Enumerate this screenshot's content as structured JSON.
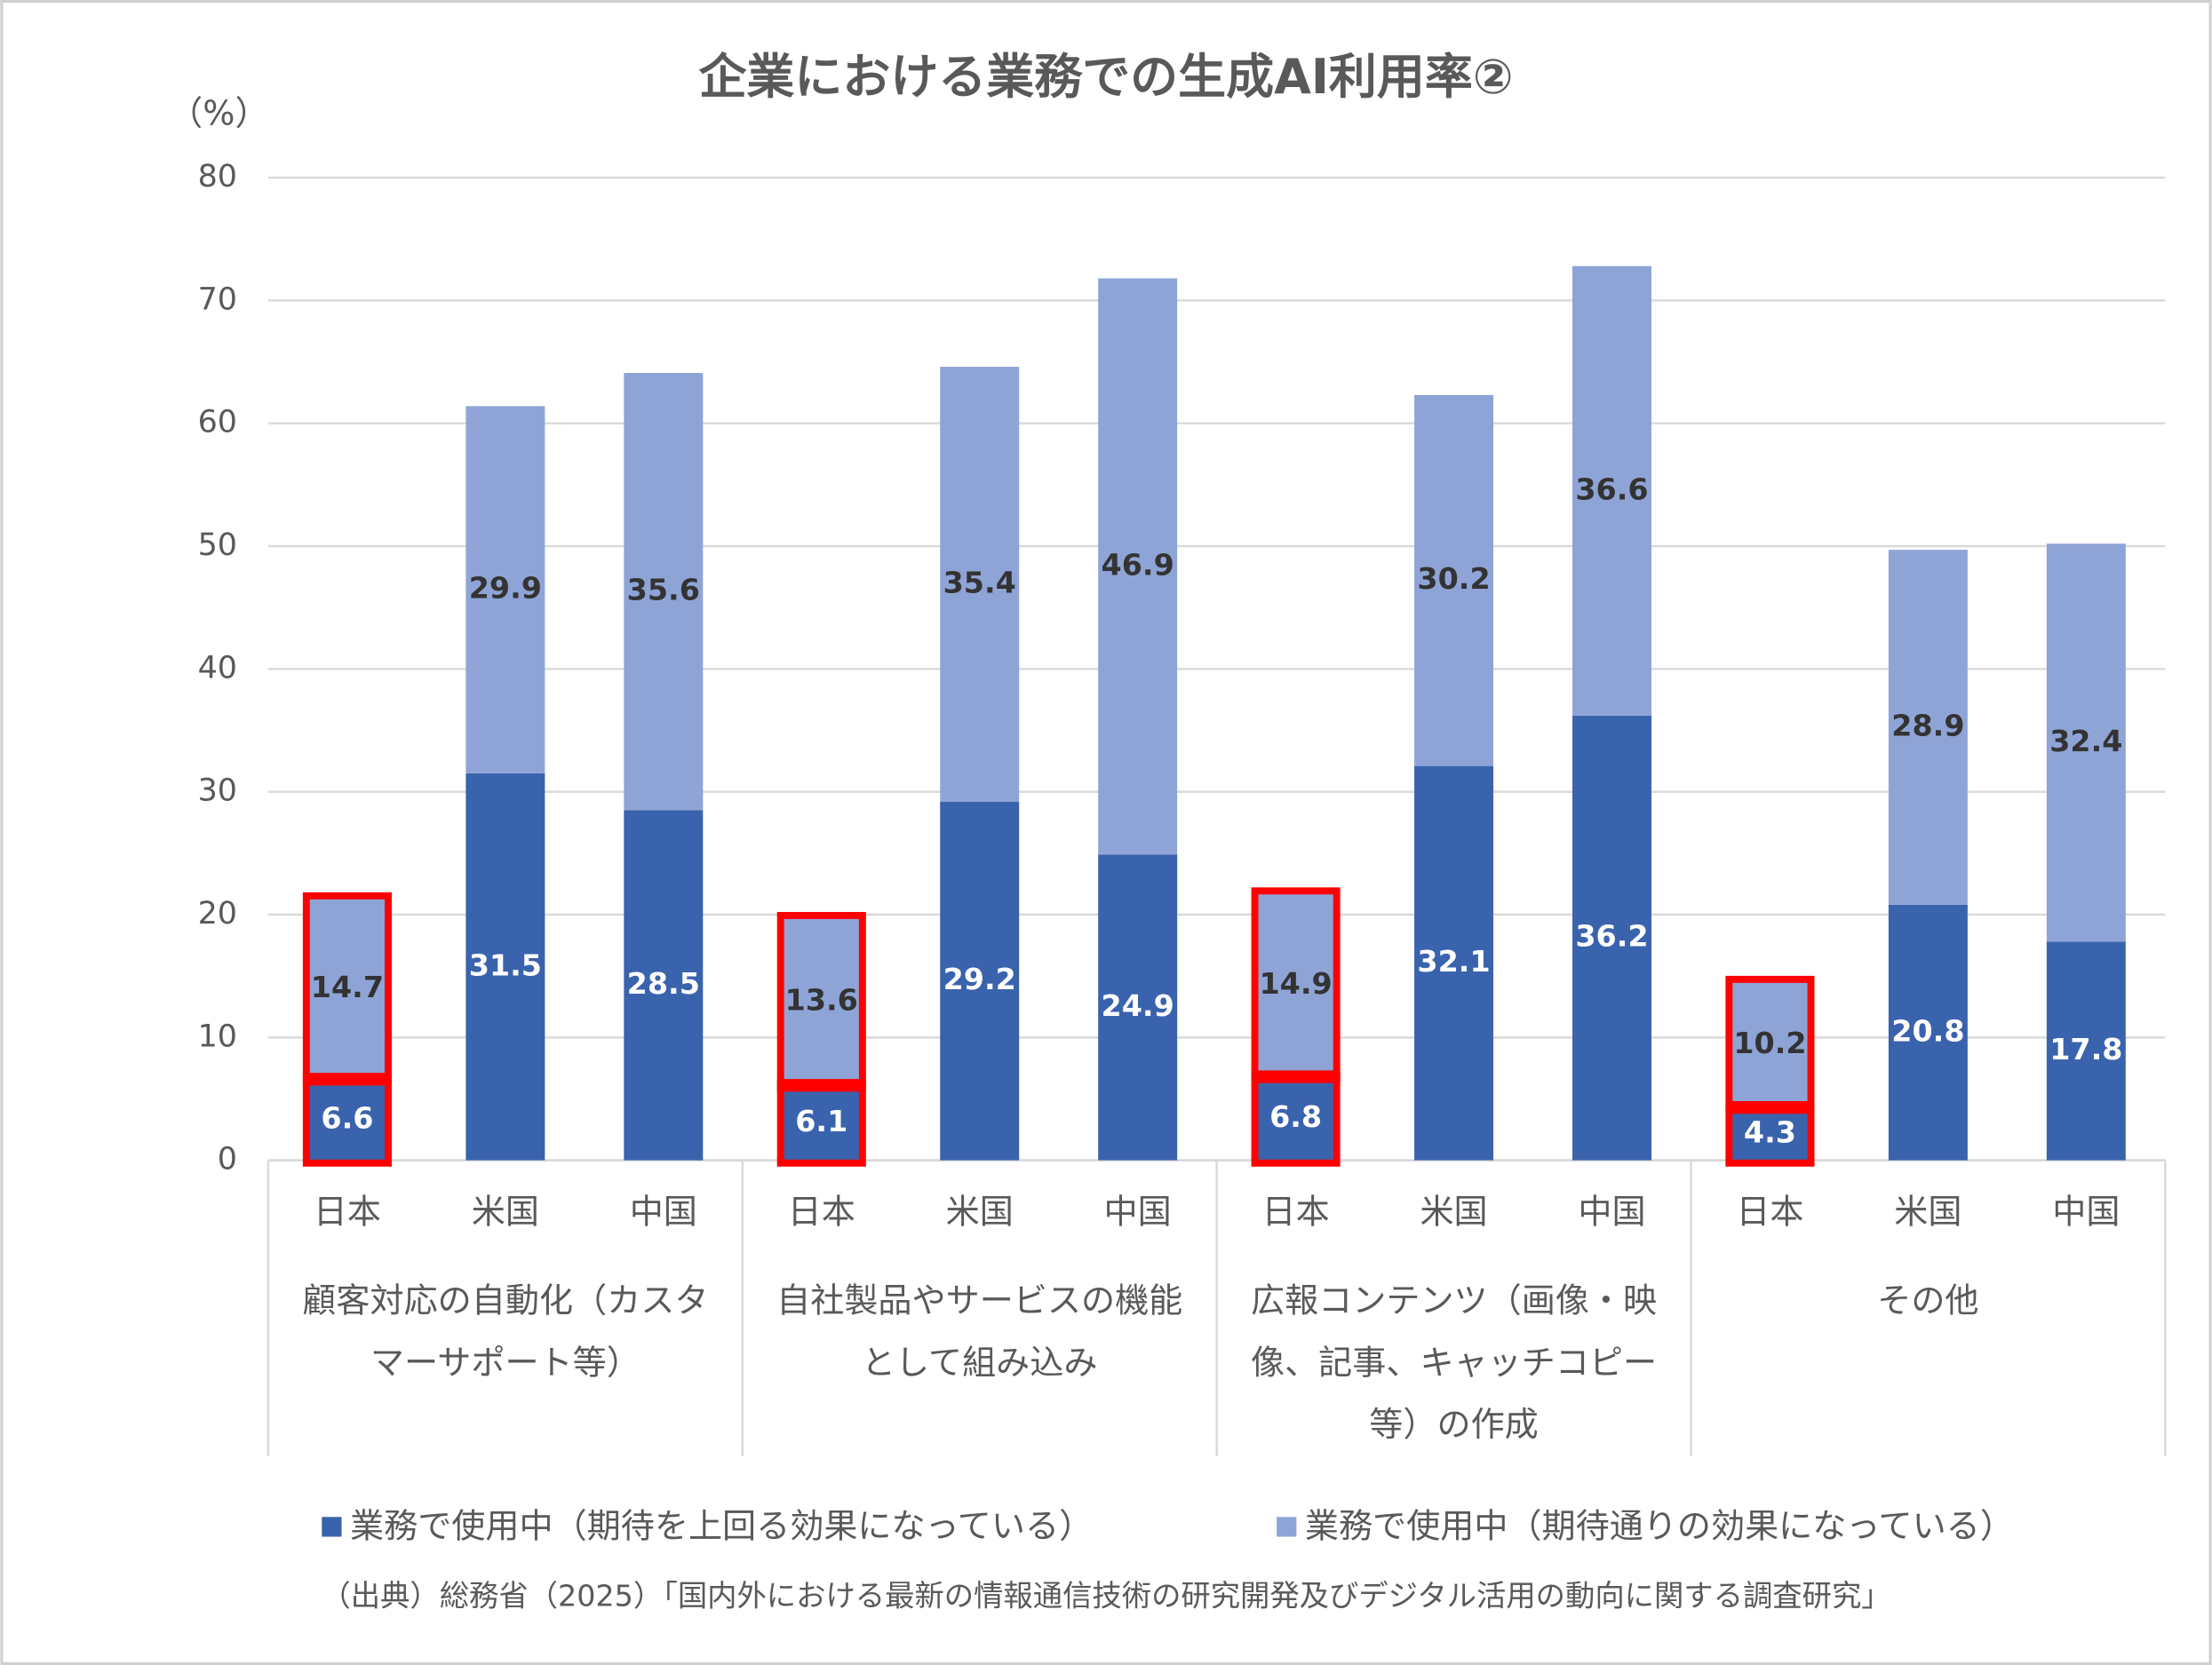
{
  "chart_data": {
    "type": "stacked-bar",
    "title": "企業における業務での生成AI利用率②",
    "y_unit_label": "（%）",
    "categories": [
      "日本",
      "米国",
      "中国",
      "日本",
      "米国",
      "中国",
      "日本",
      "米国",
      "中国",
      "日本",
      "米国",
      "中国"
    ],
    "groups": [
      {
        "lines": [
          "顧客対応の自動化（カスタ",
          "マーサポート等）"
        ]
      },
      {
        "lines": [
          "自社製品やサービスの機能",
          "として組み込み"
        ]
      },
      {
        "lines": [
          "広報コンテンツ（画像・映",
          "像、記事、キャッチコピー",
          "等）の作成"
        ]
      },
      {
        "lines": [
          "その他"
        ]
      }
    ],
    "series": [
      {
        "name": "業務で使用中（期待を上回る効果になっている）",
        "color": "#3a63ad",
        "label_color": "#ffffff",
        "values": [
          6.6,
          31.5,
          28.5,
          6.1,
          29.2,
          24.9,
          6.8,
          32.1,
          36.2,
          4.3,
          20.8,
          17.8
        ]
      },
      {
        "name": "業務で使用中（期待通りの効果になっている）",
        "color": "#8fa4d6",
        "label_color": "#333333",
        "values": [
          14.7,
          29.9,
          35.6,
          13.6,
          35.4,
          46.9,
          14.9,
          30.2,
          36.6,
          10.2,
          28.9,
          32.4
        ]
      }
    ],
    "highlight_indices": [
      0,
      3,
      6,
      9
    ],
    "highlight_color": "#ff0000",
    "ylim": [
      0,
      80
    ],
    "yticks": [
      0,
      10,
      20,
      30,
      40,
      50,
      60,
      70,
      80
    ],
    "grid": true,
    "legend": "bottom",
    "source": "（出典）総務省（2025）「国内外における最新の情報通信技術の研究開発及びデジタル活用の動向に関する調査研究」"
  }
}
